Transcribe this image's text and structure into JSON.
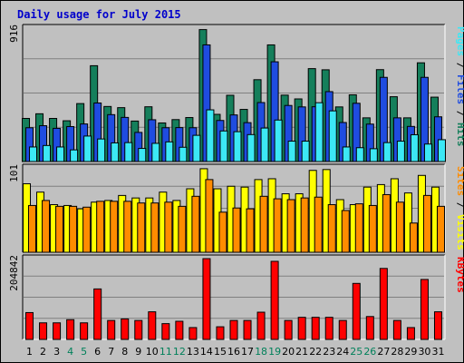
{
  "chart_data": {
    "title": "Daily usage for July 2015",
    "type": "bar",
    "categories": [
      "1",
      "2",
      "3",
      "4",
      "5",
      "6",
      "7",
      "8",
      "9",
      "10",
      "11",
      "12",
      "13",
      "14",
      "15",
      "16",
      "17",
      "18",
      "19",
      "20",
      "21",
      "22",
      "23",
      "24",
      "25",
      "26",
      "27",
      "28",
      "29",
      "30",
      "31"
    ],
    "weekend_days": [
      "4",
      "5",
      "11",
      "12",
      "18",
      "19",
      "25",
      "26"
    ],
    "panels": [
      {
        "id": "hits",
        "max_label": "916",
        "ymax": 916,
        "ylabel_parts": [
          "Pages",
          "Files",
          "Hits"
        ],
        "series": [
          {
            "name": "Hits",
            "color": "#157f5b",
            "values": [
              296,
              328,
              296,
              280,
              398,
              658,
              378,
              370,
              278,
              376,
              265,
              288,
              302,
              906,
              324,
              455,
              358,
              562,
              801,
              456,
              430,
              638,
              630,
              375,
              458,
              300,
              631,
              445,
              300,
              678,
              442
            ]
          },
          {
            "name": "Files",
            "color": "#1f4ce0",
            "values": [
              232,
              246,
              228,
              240,
              258,
              402,
              322,
              303,
              200,
              287,
              232,
              233,
              232,
              801,
              282,
              320,
              267,
              405,
              685,
              385,
              375,
              376,
              480,
              268,
              400,
              257,
              578,
              300,
              241,
              578,
              307
            ]
          },
          {
            "name": "Pages",
            "color": "#3ce8f5",
            "values": [
              100,
              110,
              100,
              80,
              175,
              155,
              128,
              130,
              90,
              125,
              135,
              98,
              180,
              355,
              210,
              205,
              185,
              230,
              285,
              140,
              140,
              404,
              348,
              100,
              95,
              88,
              130,
              140,
              184,
              120,
              150
            ]
          }
        ]
      },
      {
        "id": "visits",
        "max_label": "101",
        "ymax": 101,
        "ylabel_parts": [
          "Sites",
          "Visits"
        ],
        "series": [
          {
            "name": "Visits",
            "color": "#ffff00",
            "values": [
              82,
              72,
              57,
              56,
              52,
              60,
              62,
              68,
              65,
              65,
              72,
              62,
              76,
              100,
              76,
              79,
              78,
              87,
              88,
              70,
              70,
              98,
              99,
              63,
              57,
              78,
              81,
              88,
              71,
              92,
              78
            ]
          },
          {
            "name": "Sites",
            "color": "#ff8c00",
            "values": [
              56,
              62,
              55,
              55,
              54,
              61,
              61,
              61,
              59,
              59,
              60,
              55,
              67,
              87,
              48,
              53,
              52,
              67,
              64,
              63,
              65,
              66,
              57,
              50,
              58,
              56,
              69,
              60,
              35,
              68,
              55
            ]
          }
        ]
      },
      {
        "id": "kbytes",
        "max_label": "204842",
        "ymax": 204842,
        "ylabel_parts": [
          "KBytes"
        ],
        "series": [
          {
            "name": "KBytes",
            "color": "#ff0000",
            "values": [
              68000,
              42000,
              42000,
              50000,
              42000,
              128000,
              48000,
              52000,
              48000,
              70000,
              40000,
              46000,
              30000,
              204842,
              32000,
              48000,
              48000,
              69000,
              198000,
              48000,
              56000,
              56000,
              56000,
              48000,
              142000,
              58000,
              180000,
              48000,
              30000,
              152000,
              70000
            ]
          }
        ]
      }
    ]
  }
}
